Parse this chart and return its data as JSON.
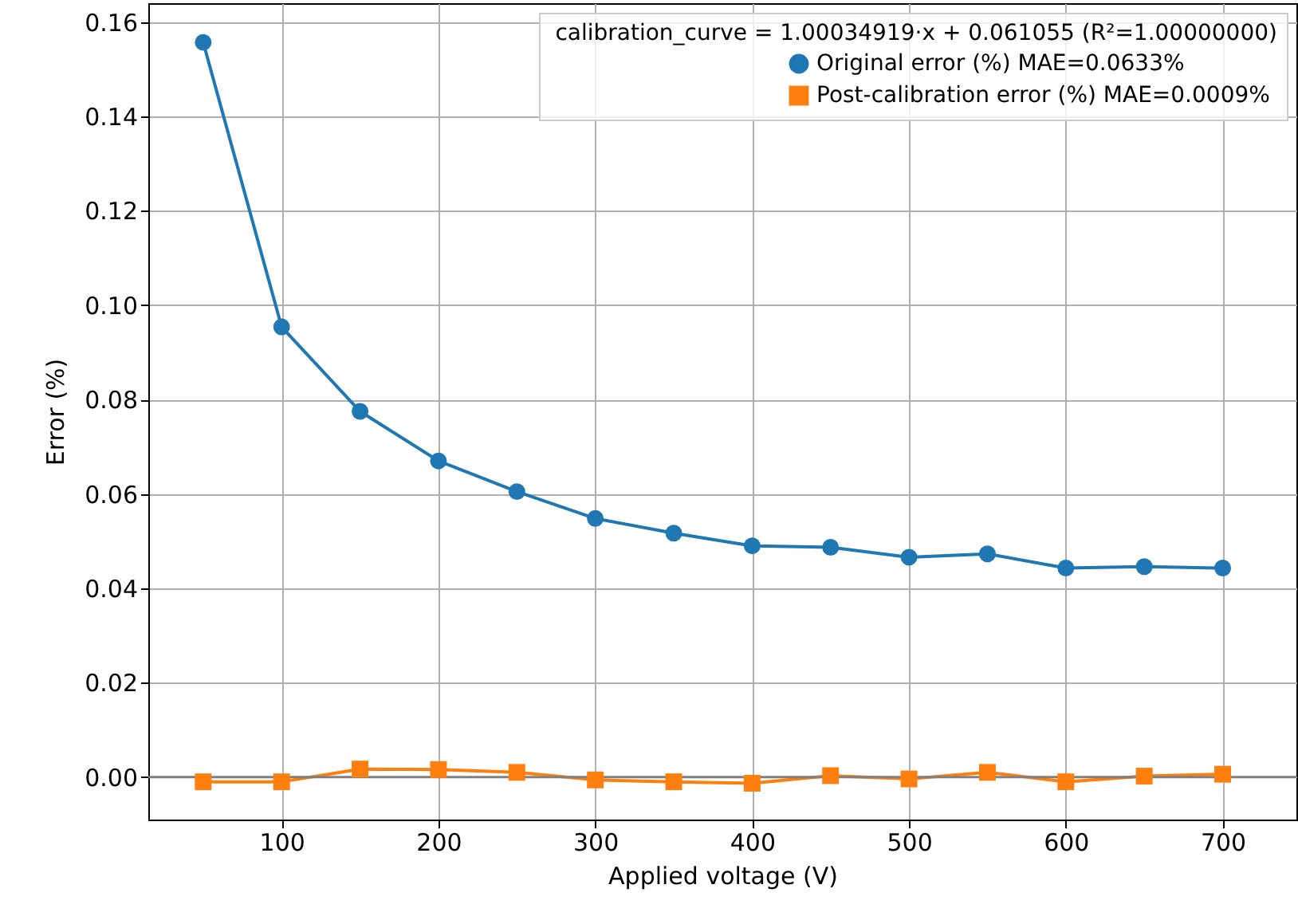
{
  "chart_data": {
    "type": "line",
    "xlabel": "Applied voltage (V)",
    "ylabel": "Error (%)",
    "legend_title": "calibration_curve = 1.00034919·x + 0.061055  (R²=1.00000000)",
    "x": [
      50,
      100,
      150,
      200,
      250,
      300,
      350,
      400,
      450,
      500,
      550,
      600,
      650,
      700
    ],
    "series": [
      {
        "name": "Original error (%)  MAE=0.0633%",
        "color": "#1f77b4",
        "marker": "circle",
        "values": [
          0.1557,
          0.0954,
          0.0775,
          0.067,
          0.0605,
          0.0548,
          0.0517,
          0.049,
          0.0487,
          0.0466,
          0.0473,
          0.0443,
          0.0446,
          0.0443
        ]
      },
      {
        "name": "Post-calibration error (%)  MAE=0.0009%",
        "color": "#ff7f0e",
        "marker": "square",
        "values": [
          -0.001,
          -0.001,
          0.0017,
          0.0016,
          0.001,
          -0.0006,
          -0.001,
          -0.0013,
          0.0003,
          -0.0004,
          0.001,
          -0.001,
          0.0002,
          0.0006
        ]
      }
    ],
    "xlim": [
      15,
      747
    ],
    "xticks": [
      100,
      200,
      300,
      400,
      500,
      600,
      700
    ],
    "ylim": [
      -0.009,
      0.164
    ],
    "yticks": [
      {
        "value": 0,
        "label": "0.00"
      },
      0.02,
      0.04,
      0.06,
      0.08,
      {
        "value": 0.1,
        "label": "0.10"
      },
      0.12,
      0.14,
      0.16
    ],
    "ref_lines": [
      {
        "axis": "y",
        "value": 0,
        "color": "#808080"
      }
    ],
    "grid": true,
    "legend": "top right",
    "line_style": "solid"
  }
}
